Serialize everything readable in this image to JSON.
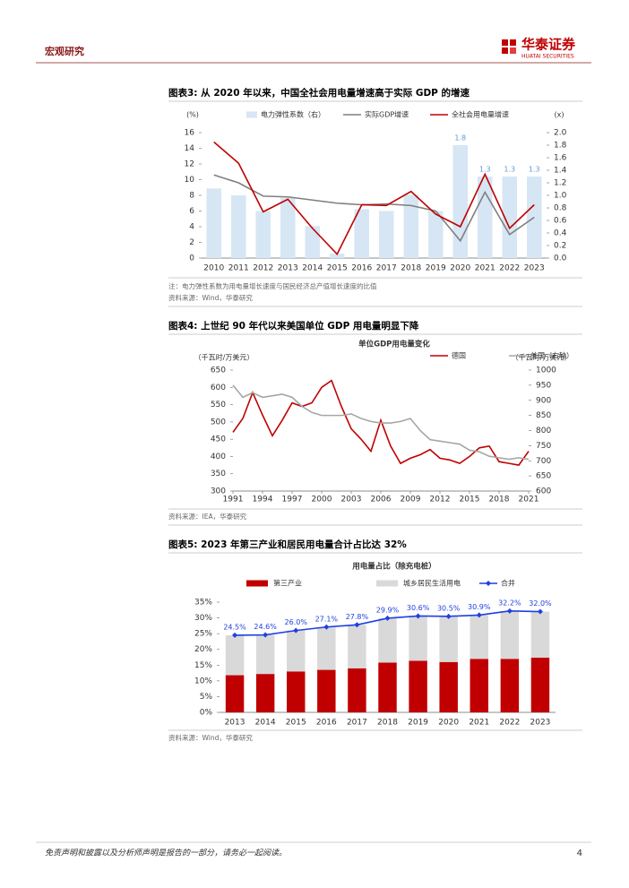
{
  "header": {
    "section": "宏观研究",
    "company": "华泰证券",
    "company_en": "HUATAI SECURITIES"
  },
  "chart_data": [
    {
      "type": "combo",
      "title": "图表3:  从 2020 年以来，中国全社会用电量增速高于实际 GDP 的增速",
      "y_label": "(%)",
      "y2_label": "(x)",
      "categories": [
        "2010",
        "2011",
        "2012",
        "2013",
        "2014",
        "2015",
        "2016",
        "2017",
        "2018",
        "2019",
        "2020",
        "2021",
        "2022",
        "2023"
      ],
      "series": [
        {
          "name": "电力弹性系数（右）",
          "type": "bar",
          "axis": "y2",
          "color": "#d6e6f4",
          "label_color": "#5b9bd5",
          "values": [
            1.11,
            1.0,
            0.75,
            0.96,
            0.51,
            0.07,
            0.78,
            0.75,
            1.01,
            0.75,
            1.8,
            1.3,
            1.3,
            1.3
          ],
          "value_labels": [
            null,
            null,
            null,
            null,
            null,
            null,
            null,
            null,
            null,
            null,
            "1.8",
            "1.3",
            "1.3",
            "1.3"
          ]
        },
        {
          "name": "实际GDP增速",
          "type": "line",
          "color": "#7f7f7f",
          "values": [
            10.6,
            9.6,
            7.9,
            7.8,
            7.4,
            7.0,
            6.8,
            6.9,
            6.7,
            6.0,
            2.2,
            8.4,
            3.0,
            5.2
          ]
        },
        {
          "name": "全社会用电量增速",
          "type": "line",
          "color": "#c00000",
          "values": [
            14.8,
            12.1,
            5.9,
            7.5,
            3.8,
            0.5,
            6.8,
            6.7,
            8.5,
            5.6,
            4.0,
            10.7,
            3.8,
            6.8
          ]
        }
      ],
      "ylim": [
        0,
        16
      ],
      "yticks": [
        0,
        2,
        4,
        6,
        8,
        10,
        12,
        14,
        16
      ],
      "y2lim": [
        0,
        2
      ],
      "y2ticks": [
        {
          "value": 0,
          "label": "0.0"
        },
        0.2,
        0.4,
        0.6,
        0.8,
        {
          "value": 1,
          "label": "1.0"
        },
        1.2,
        1.4,
        1.6,
        1.8,
        {
          "value": 2,
          "label": "2.0"
        }
      ],
      "note": "注：电力弹性系数为用电量增长速度与国民经济总产值增长速度的比值",
      "source": "资料来源：Wind，华泰研究"
    },
    {
      "type": "line",
      "title": "图表4:  上世纪 90 年代以来美国单位 GDP 用电量明显下降",
      "subtitle": "单位GDP用电量变化",
      "y_label": "（千瓦时/万美元）",
      "y2_label": "（千瓦时/万美元）",
      "x": [
        1991,
        1992,
        1993,
        1994,
        1995,
        1996,
        1997,
        1998,
        1999,
        2000,
        2001,
        2002,
        2003,
        2004,
        2005,
        2006,
        2007,
        2008,
        2009,
        2010,
        2011,
        2012,
        2013,
        2014,
        2015,
        2016,
        2017,
        2018,
        2019,
        2020,
        2021
      ],
      "series": [
        {
          "name": "德国",
          "color": "#c00000",
          "values": [
            470,
            510,
            585,
            520,
            460,
            505,
            555,
            545,
            555,
            600,
            620,
            545,
            480,
            450,
            415,
            505,
            430,
            380,
            395,
            405,
            420,
            395,
            390,
            380,
            400,
            425,
            430,
            385,
            380,
            375,
            415
          ]
        },
        {
          "name": "美国（右轴）",
          "axis": "y2",
          "color": "#a6a6a6",
          "values": [
            950,
            910,
            925,
            910,
            915,
            920,
            910,
            880,
            860,
            850,
            850,
            850,
            855,
            840,
            830,
            825,
            825,
            830,
            840,
            800,
            770,
            765,
            760,
            755,
            735,
            730,
            715,
            710,
            705,
            710,
            705
          ]
        }
      ],
      "xlim": [
        1991,
        2021
      ],
      "xticks": [
        1991,
        1994,
        1997,
        2000,
        2003,
        2006,
        2009,
        2012,
        2015,
        2018,
        2021
      ],
      "ylim": [
        300,
        650
      ],
      "yticks": [
        300,
        350,
        400,
        450,
        500,
        550,
        600,
        650
      ],
      "y2lim": [
        600,
        1000
      ],
      "y2ticks": [
        600,
        650,
        700,
        750,
        800,
        850,
        900,
        950,
        1000
      ],
      "source": "资料来源：IEA，华泰研究"
    },
    {
      "type": "combo",
      "stacked": true,
      "title": "图表5:  2023 年第三产业和居民用电量合计占比达 32%",
      "subtitle": "用电量占比（除充电桩）",
      "categories": [
        "2013",
        "2014",
        "2015",
        "2016",
        "2017",
        "2018",
        "2019",
        "2020",
        "2021",
        "2022",
        "2023"
      ],
      "series": [
        {
          "name": "第三产业",
          "type": "bar",
          "color": "#c00000",
          "values": [
            11.8,
            12.2,
            13.0,
            13.5,
            14.0,
            15.8,
            16.4,
            16.0,
            17.0,
            17.0,
            17.4
          ]
        },
        {
          "name": "城乡居民生活用电",
          "type": "bar",
          "color": "#d9d9d9",
          "values": [
            12.7,
            12.4,
            13.0,
            13.6,
            13.8,
            14.1,
            14.2,
            14.5,
            13.9,
            15.2,
            14.6
          ]
        },
        {
          "name": "合并",
          "type": "line",
          "marker": true,
          "color": "#1f3fe0",
          "label_color": "#1f3fe0",
          "values": [
            24.5,
            24.6,
            26.0,
            27.1,
            27.8,
            29.9,
            30.6,
            30.5,
            30.9,
            32.2,
            32.0
          ],
          "value_labels": [
            "24.5%",
            "24.6%",
            "26.0%",
            "27.1%",
            "27.8%",
            "29.9%",
            "30.6%",
            "30.5%",
            "30.9%",
            "32.2%",
            "32.0%"
          ]
        }
      ],
      "ylim": [
        0,
        35
      ],
      "yticks": [
        {
          "value": 0,
          "label": "0%"
        },
        {
          "value": 5,
          "label": "5%"
        },
        {
          "value": 10,
          "label": "10%"
        },
        {
          "value": 15,
          "label": "15%"
        },
        {
          "value": 20,
          "label": "20%"
        },
        {
          "value": 25,
          "label": "25%"
        },
        {
          "value": 30,
          "label": "30%"
        },
        {
          "value": 35,
          "label": "35%"
        }
      ],
      "source": "资料来源：Wind，华泰研究"
    }
  ],
  "footer": {
    "disclaimer": "免责声明和披露以及分析师声明是报告的一部分，请务必一起阅读。",
    "page": 4
  }
}
